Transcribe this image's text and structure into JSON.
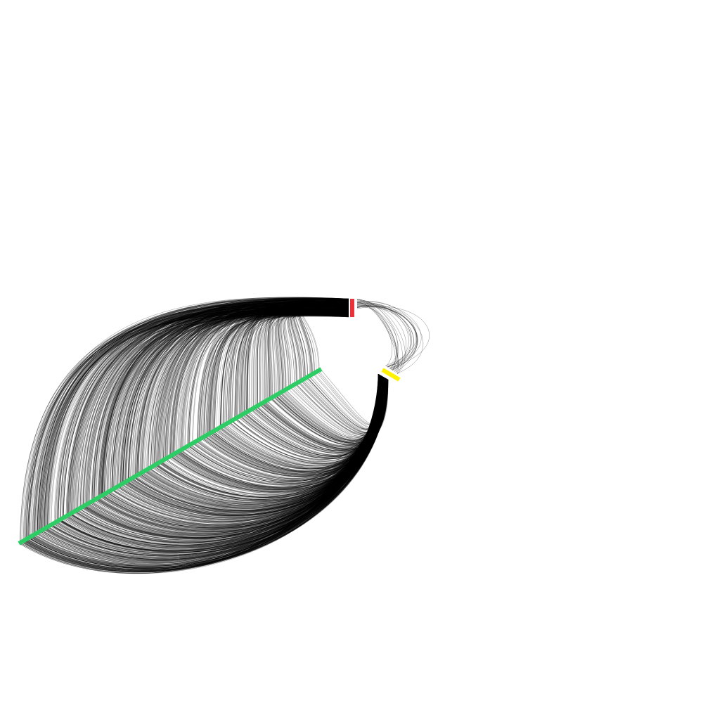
{
  "colors": {
    "background": "#ffffff",
    "edge": "#000000",
    "axis_red": "#e8323c",
    "axis_yellow": "#fff200",
    "axis_green": "#2ecc64"
  },
  "diagram": {
    "type": "hive-plot",
    "axes": [
      {
        "id": "axis-red",
        "color": "#e8323c",
        "angle_deg": -90
      },
      {
        "id": "axis-yellow",
        "color": "#fff200",
        "angle_deg": 30
      },
      {
        "id": "axis-green",
        "color": "#2ecc64",
        "angle_deg": 150
      }
    ],
    "edge_groups": [
      {
        "from": "axis-green",
        "to": "axis-red",
        "density": "high"
      },
      {
        "from": "axis-green",
        "to": "axis-yellow",
        "density": "high"
      },
      {
        "from": "axis-red",
        "to": "axis-yellow",
        "density": "low"
      }
    ]
  }
}
